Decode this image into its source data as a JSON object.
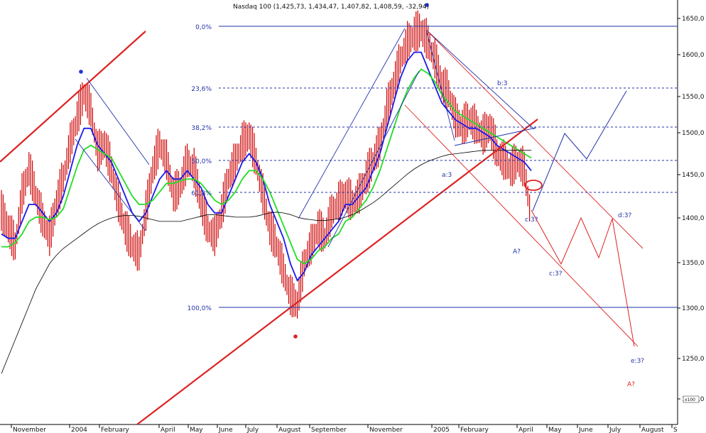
{
  "chart_data": {
    "type": "line",
    "title": "Nasdaq 100 (1,425,73, 1,434,47, 1,407,82, 1,408,59, -32,94)",
    "unit_label": "x100",
    "y_ticks": [
      "1650,0",
      "1600,0",
      "1550,0",
      "1500,0",
      "1450,0",
      "1400,0",
      "1350,0",
      "1300,0",
      "1250,0",
      "1200,0"
    ],
    "x_ticks": [
      "November",
      "2004",
      "February",
      "April",
      "May",
      "June",
      "July",
      "August",
      "September",
      "November",
      "2005",
      "February",
      "April",
      "May",
      "June",
      "July",
      "August",
      "S"
    ],
    "ylim": [
      1190,
      1665
    ],
    "grid": false,
    "fib_levels": [
      {
        "label": "0,0%",
        "value": 1638
      },
      {
        "label": "23,6%",
        "value": 1557
      },
      {
        "label": "38,2%",
        "value": 1507
      },
      {
        "label": "50,0%",
        "value": 1467
      },
      {
        "label": "61,8%",
        "value": 1429
      },
      {
        "label": "100,0%",
        "value": 1302
      }
    ],
    "wave_labels": [
      {
        "text": "a:3",
        "color": "#2233aa"
      },
      {
        "text": "b:3",
        "color": "#2233aa"
      },
      {
        "text": "c:3?",
        "color": "#2233aa"
      },
      {
        "text": "A?",
        "color": "#2233aa"
      },
      {
        "text": "c:3?",
        "color": "#2233aa"
      },
      {
        "text": "d:3?",
        "color": "#2233aa"
      },
      {
        "text": "e:3?",
        "color": "#2233aa"
      },
      {
        "text": "A?",
        "color": "#dd2222"
      }
    ],
    "series": [
      {
        "values": [
          1420,
          1400,
          1380,
          1440,
          1470,
          1440,
          1410,
          1390,
          1430,
          1460,
          1500,
          1530,
          1560,
          1540,
          1490,
          1500,
          1470,
          1430,
          1400,
          1380,
          1370,
          1420,
          1470,
          1500,
          1480,
          1440,
          1450,
          1480,
          1470,
          1430,
          1400,
          1390,
          1420,
          1460,
          1480,
          1500,
          1510,
          1480,
          1440,
          1400,
          1380,
          1350,
          1320,
          1310,
          1360,
          1380,
          1400,
          1390,
          1420,
          1430,
          1440,
          1430,
          1440,
          1460,
          1480,
          1500,
          1540,
          1570,
          1600,
          1620,
          1630,
          1635,
          1620,
          1600,
          1570,
          1560,
          1530,
          1520,
          1530,
          1520,
          1510,
          1520,
          1490,
          1480,
          1470,
          1480,
          1470,
          1410
        ]
      },
      {
        "values": [
          1395,
          1390,
          1390,
          1410,
          1430,
          1430,
          1420,
          1410,
          1420,
          1440,
          1470,
          1500,
          1520,
          1520,
          1500,
          1490,
          1480,
          1460,
          1440,
          1420,
          1410,
          1420,
          1440,
          1460,
          1470,
          1460,
          1460,
          1470,
          1460,
          1450,
          1430,
          1420,
          1420,
          1440,
          1460,
          1480,
          1490,
          1480,
          1460,
          1430,
          1410,
          1390,
          1360,
          1340,
          1350,
          1370,
          1380,
          1390,
          1400,
          1410,
          1430,
          1430,
          1440,
          1450,
          1470,
          1490,
          1520,
          1550,
          1580,
          1600,
          1610,
          1610,
          1590,
          1570,
          1550,
          1540,
          1530,
          1525,
          1520,
          1520,
          1515,
          1510,
          1500,
          1495,
          1490,
          1485,
          1480,
          1470
        ]
      },
      {
        "values": [
          1380,
          1380,
          1385,
          1395,
          1410,
          1415,
          1415,
          1412,
          1415,
          1425,
          1450,
          1475,
          1495,
          1500,
          1495,
          1490,
          1485,
          1470,
          1455,
          1440,
          1430,
          1430,
          1435,
          1445,
          1455,
          1455,
          1458,
          1460,
          1460,
          1455,
          1445,
          1435,
          1430,
          1435,
          1445,
          1460,
          1470,
          1470,
          1460,
          1445,
          1425,
          1405,
          1385,
          1365,
          1360,
          1365,
          1375,
          1380,
          1390,
          1395,
          1410,
          1415,
          1425,
          1435,
          1450,
          1470,
          1495,
          1520,
          1545,
          1565,
          1580,
          1590,
          1585,
          1575,
          1560,
          1550,
          1540,
          1535,
          1530,
          1525,
          1520,
          1515,
          1510,
          1505,
          1500,
          1495,
          1490,
          1485
        ]
      },
      {
        "values": [
          1230,
          1250,
          1270,
          1290,
          1310,
          1330,
          1345,
          1360,
          1370,
          1378,
          1384,
          1390,
          1396,
          1402,
          1407,
          1411,
          1414,
          1416,
          1417,
          1417,
          1416,
          1414,
          1412,
          1410,
          1410,
          1410,
          1410,
          1412,
          1414,
          1416,
          1418,
          1418,
          1417,
          1416,
          1415,
          1415,
          1415,
          1416,
          1418,
          1420,
          1421,
          1420,
          1418,
          1415,
          1413,
          1412,
          1411,
          1411,
          1412,
          1413,
          1415,
          1418,
          1422,
          1427,
          1432,
          1438,
          1445,
          1452,
          1459,
          1466,
          1472,
          1477,
          1481,
          1484,
          1487,
          1489,
          1490,
          1491,
          1492,
          1493,
          1494,
          1494,
          1494,
          1494,
          1494,
          1494,
          1494,
          1494
        ]
      }
    ],
    "forecast_red": [
      1408,
      1460,
      1420,
      1345,
      1400,
      1350,
      1400,
      1260
    ],
    "forecast_blue": [
      1408,
      1465,
      1500,
      1470,
      1550
    ]
  }
}
